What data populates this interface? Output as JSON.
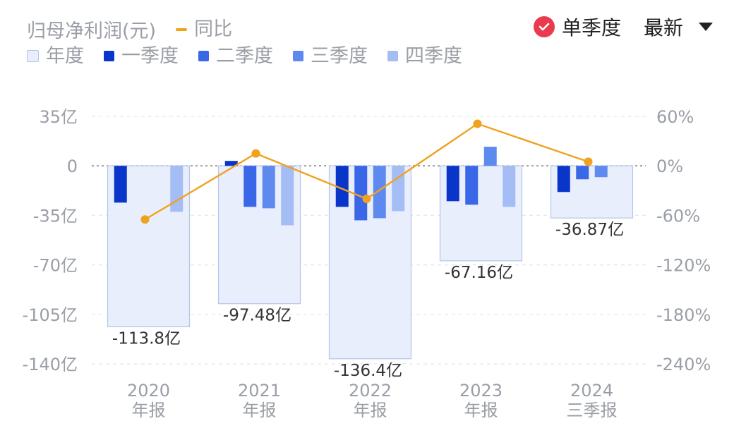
{
  "header": {
    "series_title": "归母净利润(元)",
    "yoy_label": "同比",
    "single_quarter_label": "单季度",
    "latest_label": "最新"
  },
  "legend": [
    {
      "label": "年度",
      "color": "#e8eefc",
      "border": "#b6c5e8"
    },
    {
      "label": "一季度",
      "color": "#0a35c9"
    },
    {
      "label": "二季度",
      "color": "#3a67e8"
    },
    {
      "label": "三季度",
      "color": "#5e8aef"
    },
    {
      "label": "四季度",
      "color": "#a5bdf5"
    }
  ],
  "colors": {
    "line": "#f0a21c",
    "grid": "#e3e6ec",
    "zero": "#7d828c",
    "axis_text": "#9a9ea6",
    "label_text": "#333333"
  },
  "chart_data": {
    "type": "bar",
    "categories": [
      {
        "year": "2020",
        "period": "年报"
      },
      {
        "year": "2021",
        "period": "年报"
      },
      {
        "year": "2022",
        "period": "年报"
      },
      {
        "year": "2023",
        "period": "年报"
      },
      {
        "year": "2024",
        "period": "三季报"
      }
    ],
    "annual": {
      "name": "年度",
      "values": [
        -113.8,
        -97.48,
        -136.4,
        -67.16,
        -36.87
      ],
      "labels": [
        "-113.8亿",
        "-97.48亿",
        "-136.4亿",
        "-67.16亿",
        "-36.87亿"
      ]
    },
    "quarters": [
      {
        "name": "一季度",
        "values": [
          -26,
          3.5,
          -29,
          -25,
          -18.5
        ]
      },
      {
        "name": "二季度",
        "values": [
          null,
          -29,
          -38.5,
          -27.5,
          -9.5
        ]
      },
      {
        "name": "三季度",
        "values": [
          null,
          -30,
          -37,
          13.5,
          -8
        ]
      },
      {
        "name": "四季度",
        "values": [
          -32.5,
          -42,
          -32,
          -29,
          null
        ]
      }
    ],
    "yoy": {
      "name": "同比",
      "values": [
        -65,
        15,
        -40,
        51,
        5
      ]
    },
    "left_axis": {
      "ticks": [
        35,
        0,
        -35,
        -70,
        -105,
        -140
      ],
      "labels": [
        "35亿",
        "0",
        "-35亿",
        "-70亿",
        "-105亿",
        "-140亿"
      ],
      "range": [
        -140,
        35
      ]
    },
    "right_axis": {
      "ticks": [
        60,
        0,
        -60,
        -120,
        -180,
        -240
      ],
      "labels": [
        "60%",
        "0%",
        "-60%",
        "-120%",
        "-180%",
        "-240%"
      ],
      "range": [
        -240,
        60
      ]
    },
    "grid": true
  }
}
